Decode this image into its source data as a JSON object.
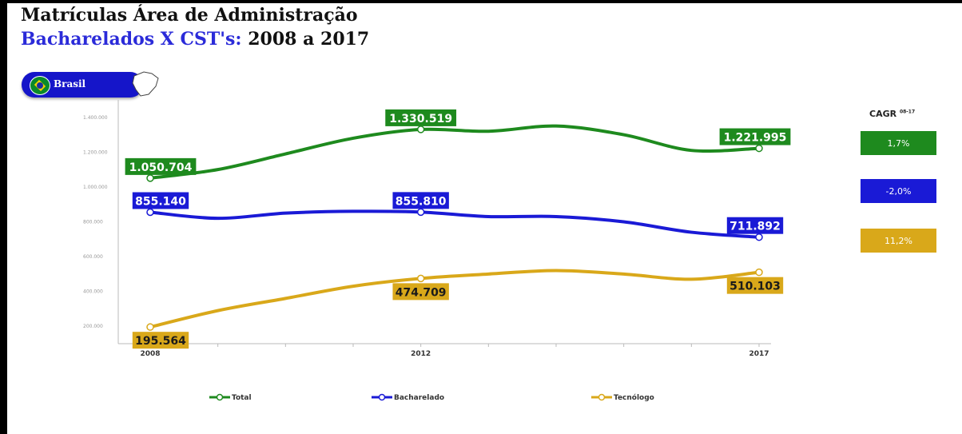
{
  "header": {
    "title_line1": "Matrículas Área de Administração",
    "title_line2_blue": "Bacharelados X CST's:",
    "title_line2_dark": " 2008 a 2017",
    "region_selector": "Brasil"
  },
  "cagr": {
    "title": "CAGR",
    "superscript": "08-17",
    "items": [
      {
        "value": "1,7%",
        "color": "#1e8a1e"
      },
      {
        "value": "-2,0%",
        "color": "#1a1ad6"
      },
      {
        "value": "11,2%",
        "color": "#d9a81a"
      }
    ]
  },
  "chart_data": {
    "type": "line",
    "x": [
      2008,
      2009,
      2010,
      2011,
      2012,
      2013,
      2014,
      2015,
      2016,
      2017
    ],
    "x_tick_labels": [
      "2008",
      "2012",
      "2017"
    ],
    "x_ticks": [
      2008,
      2012,
      2017
    ],
    "ylim": [
      100000,
      1500000
    ],
    "y_ticks": [
      200000,
      400000,
      600000,
      800000,
      1000000,
      1200000,
      1400000
    ],
    "y_tick_labels": [
      "200.000",
      "400.000",
      "600.000",
      "800.000",
      "1.000.000",
      "1.200.000",
      "1.400.000"
    ],
    "series": [
      {
        "name": "Total",
        "color": "#1e8a1e",
        "values": [
          1050704,
          1100000,
          1190000,
          1280000,
          1330519,
          1320000,
          1350000,
          1300000,
          1210000,
          1221995
        ],
        "labels": [
          {
            "index": 0,
            "text": "1.050.704",
            "pos": "above"
          },
          {
            "index": 4,
            "text": "1.330.519",
            "pos": "above"
          },
          {
            "index": 9,
            "text": "1.221.995",
            "pos": "above"
          }
        ]
      },
      {
        "name": "Bacharelado",
        "color": "#1a1ad6",
        "values": [
          855140,
          820000,
          850000,
          860000,
          855810,
          830000,
          830000,
          800000,
          740000,
          711892
        ],
        "labels": [
          {
            "index": 0,
            "text": "855.140",
            "pos": "above"
          },
          {
            "index": 4,
            "text": "855.810",
            "pos": "above"
          },
          {
            "index": 9,
            "text": "711.892",
            "pos": "above"
          }
        ]
      },
      {
        "name": "Tecnólogo",
        "color": "#d9a81a",
        "values": [
          195564,
          290000,
          360000,
          430000,
          474709,
          500000,
          520000,
          500000,
          470000,
          510103
        ],
        "labels": [
          {
            "index": 0,
            "text": "195.564",
            "pos": "below"
          },
          {
            "index": 4,
            "text": "474.709",
            "pos": "below"
          },
          {
            "index": 9,
            "text": "510.103",
            "pos": "below"
          }
        ]
      }
    ],
    "legend": "bottom",
    "grid": false
  }
}
